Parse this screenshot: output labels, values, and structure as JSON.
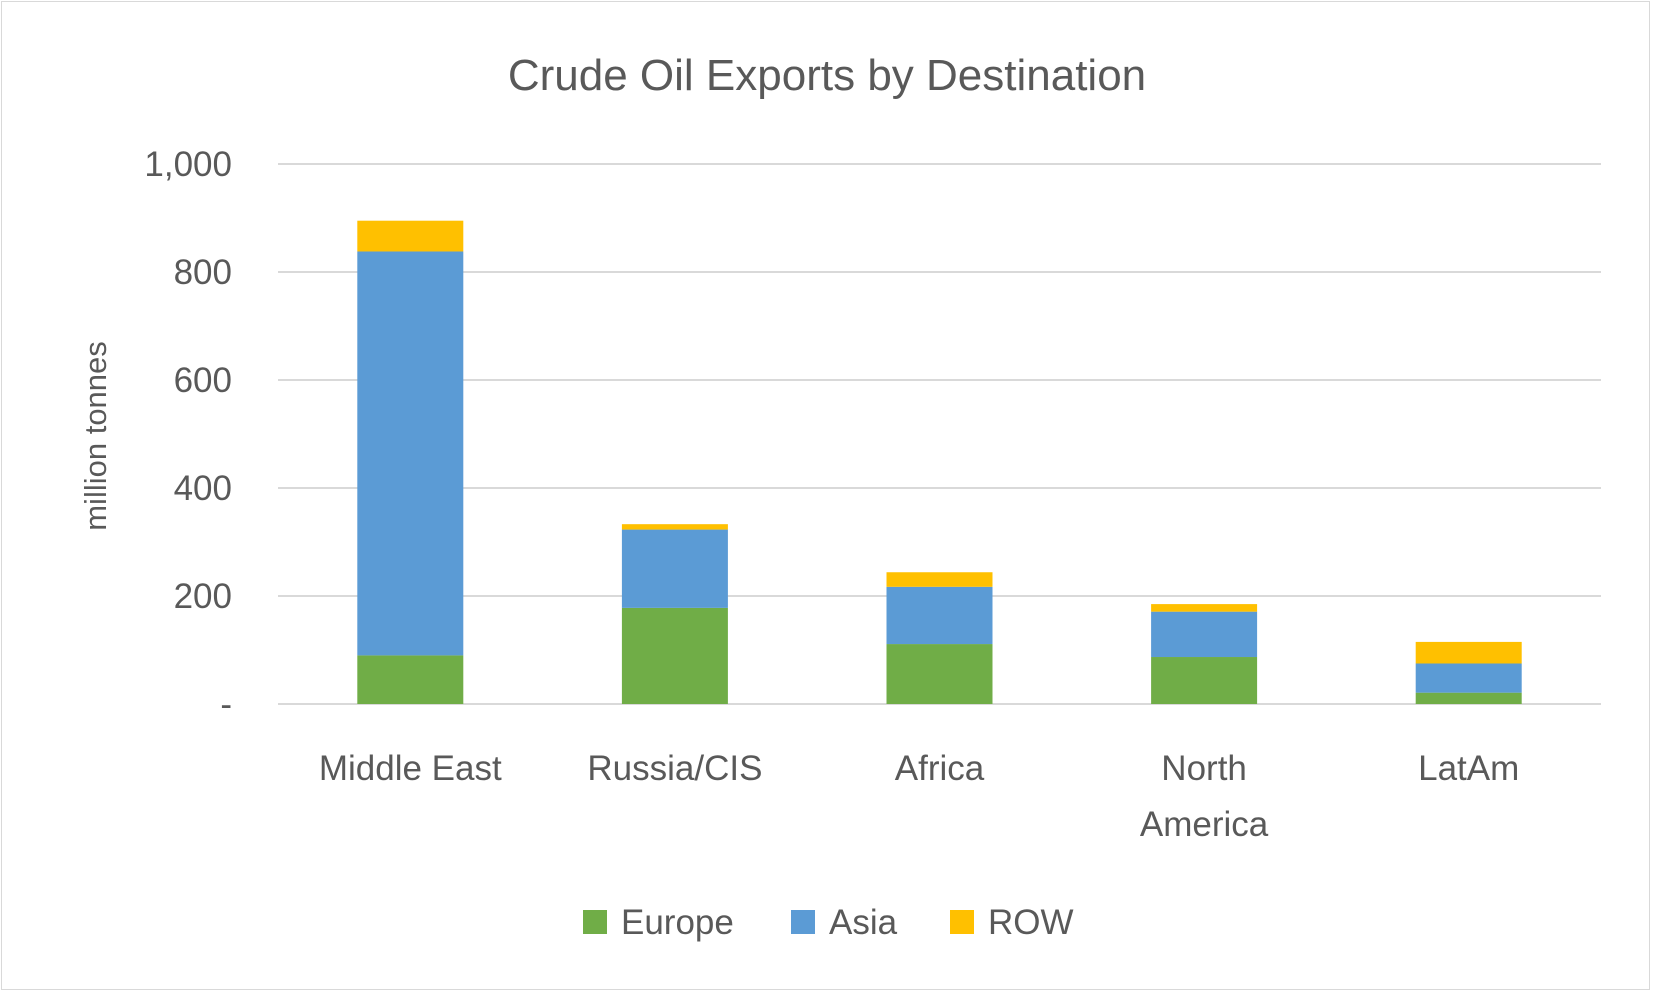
{
  "chart_data": {
    "type": "bar",
    "stacked": true,
    "title": "Crude Oil Exports by Destination",
    "xlabel": "",
    "ylabel": "million tonnes",
    "categories": [
      "Middle East",
      "Russia/CIS",
      "Africa",
      "North America",
      "LatAm"
    ],
    "category_lines": [
      [
        "Middle East"
      ],
      [
        "Russia/CIS"
      ],
      [
        "Africa"
      ],
      [
        "North",
        "America"
      ],
      [
        "LatAm"
      ]
    ],
    "ylim": [
      0,
      1000
    ],
    "yticks": [
      0,
      200,
      400,
      600,
      800,
      1000
    ],
    "ytick_labels": [
      "-",
      "200",
      "400",
      "600",
      "800",
      "1,000"
    ],
    "grid": true,
    "legend": "bottom",
    "series": [
      {
        "name": "Europe",
        "color": "#70AD47",
        "values": [
          90,
          178,
          111,
          87,
          21
        ]
      },
      {
        "name": "Asia",
        "color": "#5B9BD5",
        "values": [
          748,
          145,
          106,
          84,
          54
        ]
      },
      {
        "name": "ROW",
        "color": "#FFC000",
        "values": [
          57,
          10,
          27,
          14,
          40
        ]
      }
    ]
  }
}
